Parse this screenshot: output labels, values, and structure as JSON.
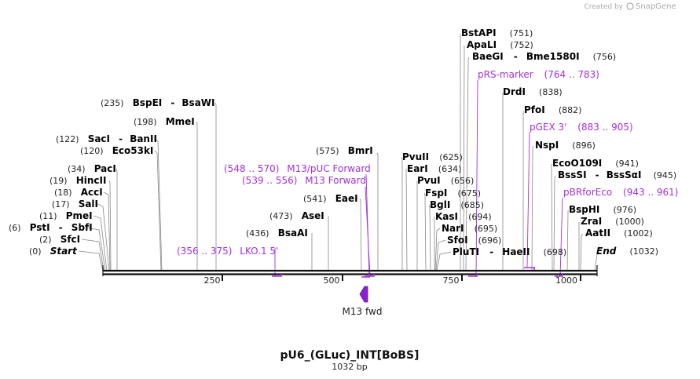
{
  "branding": {
    "created_by": "Created by",
    "app": "SnapGene"
  },
  "plasmid": {
    "name": "pU6_(GLuc)_INT[BoBS]",
    "length_label": "1032 bp"
  },
  "colors": {
    "feature": "#a330d9",
    "dna": "#111111",
    "branding": "#aaaaaa"
  },
  "chart_data": {
    "type": "linear-map",
    "sequence_length": 1032,
    "ticks": [
      {
        "value": 250,
        "label": "250"
      },
      {
        "value": 500,
        "label": "500"
      },
      {
        "value": 750,
        "label": "750"
      },
      {
        "value": 1000,
        "label": "1000"
      }
    ],
    "sites": [
      {
        "id": "start",
        "pos": "(0)",
        "name": "Start",
        "italic": true
      },
      {
        "id": "sfci",
        "pos": "(2)",
        "name": "SfcI"
      },
      {
        "id": "psti",
        "pos": "(6)",
        "name": "PstI",
        "name2": "SbfI"
      },
      {
        "id": "pmei",
        "pos": "(11)",
        "name": "PmeI"
      },
      {
        "id": "sali",
        "pos": "(17)",
        "name": "SalI"
      },
      {
        "id": "acci",
        "pos": "(18)",
        "name": "AccI"
      },
      {
        "id": "hincii",
        "pos": "(19)",
        "name": "HincII"
      },
      {
        "id": "paci",
        "pos": "(34)",
        "name": "PacI"
      },
      {
        "id": "eco53ki",
        "pos": "(120)",
        "name": "Eco53kI"
      },
      {
        "id": "saci",
        "pos": "(122)",
        "name": "SacI",
        "name2": "BanII"
      },
      {
        "id": "mmei",
        "pos": "(198)",
        "name": "MmeI"
      },
      {
        "id": "bspei",
        "pos": "(235)",
        "name": "BspEI",
        "name2": "BsaWI"
      },
      {
        "id": "bsaai",
        "pos": "(436)",
        "name": "BsaAI"
      },
      {
        "id": "asei",
        "pos": "(473)",
        "name": "AseI"
      },
      {
        "id": "eaei",
        "pos": "(541)",
        "name": "EaeI"
      },
      {
        "id": "bmri",
        "pos": "(575)",
        "name": "BmrI"
      },
      {
        "id": "pvuii",
        "pos": "(625)",
        "name": "PvuII"
      },
      {
        "id": "eari",
        "pos": "(634)",
        "name": "EarI"
      },
      {
        "id": "pvui",
        "pos": "(656)",
        "name": "PvuI"
      },
      {
        "id": "fspi",
        "pos": "(675)",
        "name": "FspI"
      },
      {
        "id": "bgli",
        "pos": "(685)",
        "name": "BglI"
      },
      {
        "id": "kasi",
        "pos": "(694)",
        "name": "KasI"
      },
      {
        "id": "nari",
        "pos": "(695)",
        "name": "NarI"
      },
      {
        "id": "sfoi",
        "pos": "(696)",
        "name": "SfoI"
      },
      {
        "id": "pluti",
        "pos": "(698)",
        "name": "PluTI",
        "name2": "HaeII"
      },
      {
        "id": "bstapi",
        "pos": "(751)",
        "name": "BstAPI"
      },
      {
        "id": "apali",
        "pos": "(752)",
        "name": "ApaLI"
      },
      {
        "id": "baegi",
        "pos": "(756)",
        "name": "BaeGI",
        "name2": "Bme1580I"
      },
      {
        "id": "drdi",
        "pos": "(838)",
        "name": "DrdI"
      },
      {
        "id": "pfoi",
        "pos": "(882)",
        "name": "PfoI"
      },
      {
        "id": "nspi",
        "pos": "(896)",
        "name": "NspI"
      },
      {
        "id": "eco0109i",
        "pos": "(941)",
        "name": "EcoO109I"
      },
      {
        "id": "bsssi",
        "pos": "(945)",
        "name": "BssSI",
        "name2": "BssSαI"
      },
      {
        "id": "bsphi",
        "pos": "(976)",
        "name": "BspHI"
      },
      {
        "id": "zrai",
        "pos": "(1000)",
        "name": "ZraI"
      },
      {
        "id": "aatii",
        "pos": "(1002)",
        "name": "AatII"
      },
      {
        "id": "end",
        "pos": "(1032)",
        "name": "End",
        "italic": true
      }
    ],
    "primers": [
      {
        "id": "lko",
        "range": "(356 .. 375)",
        "name": "LKO.1 5'"
      },
      {
        "id": "m13puc",
        "range": "(548 .. 570)",
        "name": "M13/pUC Forward"
      },
      {
        "id": "m13f",
        "range": "(539 .. 556)",
        "name": "M13 Forward"
      },
      {
        "id": "prs",
        "name": "pRS-marker",
        "range": "(764 .. 783)"
      },
      {
        "id": "pgex",
        "name": "pGEX 3'",
        "range": "(883 .. 905)"
      },
      {
        "id": "pbr",
        "name": "pBRforEco",
        "range": "(943 .. 961)"
      }
    ],
    "features": [
      {
        "id": "m13fwd",
        "name": "M13 fwd",
        "direction": "reverse"
      }
    ]
  }
}
